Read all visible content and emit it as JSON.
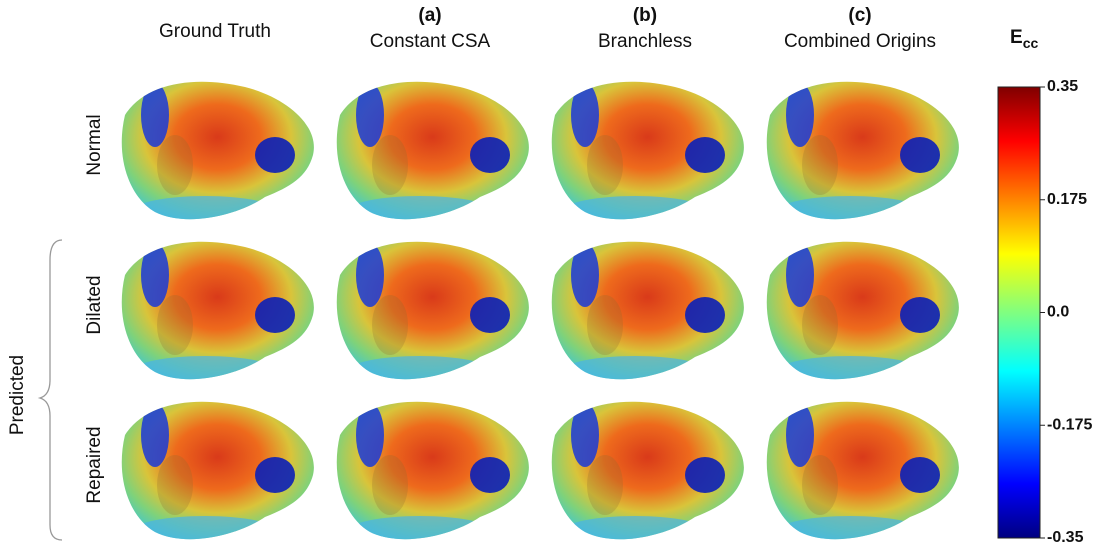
{
  "columns": [
    {
      "title": "Ground Truth"
    },
    {
      "tag": "(a)",
      "title": "Constant CSA"
    },
    {
      "tag": "(b)",
      "title": "Branchless"
    },
    {
      "tag": "(c)",
      "title": "Combined Origins"
    }
  ],
  "rows": [
    "Normal",
    "Dilated",
    "Repaired"
  ],
  "group_label": "Predicted",
  "colorbar": {
    "title": "E",
    "subscript": "cc",
    "lim": [
      -0.35,
      0.35
    ],
    "ticks": [
      0.35,
      0.175,
      {
        "value": 0,
        "label": "0.0"
      },
      -0.175,
      -0.35
    ]
  }
}
